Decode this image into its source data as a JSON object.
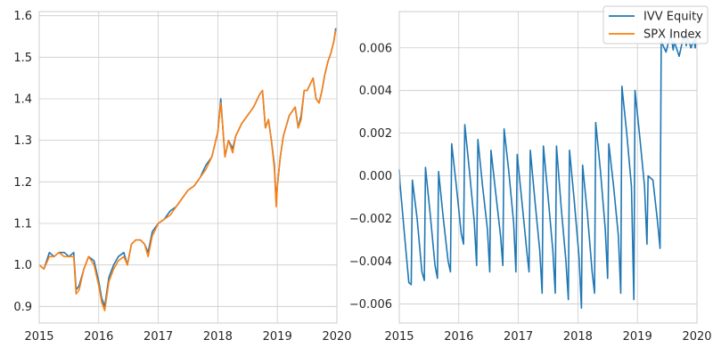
{
  "chart_data": [
    {
      "type": "line",
      "title": "",
      "xlabel": "",
      "ylabel": "",
      "xlim": [
        2015.0,
        2020.0
      ],
      "ylim": [
        0.86,
        1.61
      ],
      "xticks": [
        2015,
        2016,
        2017,
        2018,
        2019,
        2020
      ],
      "xtick_labels": [
        "2015",
        "2016",
        "2017",
        "2018",
        "2019",
        "2020"
      ],
      "yticks": [
        0.9,
        1.0,
        1.1,
        1.2,
        1.3,
        1.4,
        1.5,
        1.6
      ],
      "ytick_labels": [
        "0.9",
        "1.0",
        "1.1",
        "1.2",
        "1.3",
        "1.4",
        "1.5",
        "1.6"
      ],
      "grid": true,
      "series": [
        {
          "name": "IVV Equity",
          "color": "#1f77b4",
          "x": [
            2015.0,
            2015.08,
            2015.17,
            2015.25,
            2015.33,
            2015.42,
            2015.5,
            2015.58,
            2015.62,
            2015.67,
            2015.75,
            2015.83,
            2015.92,
            2016.0,
            2016.05,
            2016.1,
            2016.17,
            2016.25,
            2016.33,
            2016.42,
            2016.48,
            2016.55,
            2016.62,
            2016.7,
            2016.77,
            2016.83,
            2016.9,
            2017.0,
            2017.1,
            2017.2,
            2017.3,
            2017.4,
            2017.5,
            2017.6,
            2017.7,
            2017.8,
            2017.9,
            2018.0,
            2018.05,
            2018.08,
            2018.12,
            2018.18,
            2018.25,
            2018.3,
            2018.4,
            2018.5,
            2018.6,
            2018.7,
            2018.75,
            2018.8,
            2018.85,
            2018.9,
            2018.95,
            2018.98,
            2019.0,
            2019.05,
            2019.1,
            2019.2,
            2019.3,
            2019.35,
            2019.4,
            2019.45,
            2019.5,
            2019.6,
            2019.65,
            2019.7,
            2019.75,
            2019.8,
            2019.85,
            2019.9,
            2019.95,
            2019.98
          ],
          "values": [
            1.0,
            0.99,
            1.03,
            1.02,
            1.03,
            1.03,
            1.02,
            1.03,
            0.94,
            0.95,
            0.99,
            1.02,
            1.01,
            0.96,
            0.92,
            0.9,
            0.97,
            1.0,
            1.02,
            1.03,
            1.0,
            1.05,
            1.06,
            1.06,
            1.05,
            1.03,
            1.08,
            1.1,
            1.11,
            1.13,
            1.14,
            1.16,
            1.18,
            1.19,
            1.21,
            1.24,
            1.26,
            1.32,
            1.4,
            1.34,
            1.26,
            1.3,
            1.28,
            1.31,
            1.34,
            1.36,
            1.38,
            1.41,
            1.42,
            1.33,
            1.35,
            1.3,
            1.24,
            1.15,
            1.19,
            1.26,
            1.31,
            1.36,
            1.38,
            1.33,
            1.36,
            1.42,
            1.42,
            1.45,
            1.4,
            1.39,
            1.42,
            1.46,
            1.49,
            1.51,
            1.54,
            1.57
          ]
        },
        {
          "name": "SPX Index",
          "color": "#ff7f0e",
          "x": [
            2015.0,
            2015.08,
            2015.17,
            2015.25,
            2015.33,
            2015.42,
            2015.5,
            2015.58,
            2015.62,
            2015.67,
            2015.75,
            2015.83,
            2015.92,
            2016.0,
            2016.05,
            2016.1,
            2016.17,
            2016.25,
            2016.33,
            2016.42,
            2016.48,
            2016.55,
            2016.62,
            2016.7,
            2016.77,
            2016.83,
            2016.9,
            2017.0,
            2017.1,
            2017.2,
            2017.3,
            2017.4,
            2017.5,
            2017.6,
            2017.7,
            2017.8,
            2017.9,
            2018.0,
            2018.05,
            2018.08,
            2018.12,
            2018.18,
            2018.25,
            2018.3,
            2018.4,
            2018.5,
            2018.6,
            2018.7,
            2018.75,
            2018.8,
            2018.85,
            2018.9,
            2018.95,
            2018.98,
            2019.0,
            2019.05,
            2019.1,
            2019.2,
            2019.3,
            2019.35,
            2019.4,
            2019.45,
            2019.5,
            2019.6,
            2019.65,
            2019.7,
            2019.75,
            2019.8,
            2019.85,
            2019.9,
            2019.95,
            2019.98
          ],
          "values": [
            1.0,
            0.99,
            1.02,
            1.02,
            1.03,
            1.02,
            1.02,
            1.02,
            0.93,
            0.94,
            0.99,
            1.02,
            1.0,
            0.95,
            0.91,
            0.89,
            0.96,
            0.99,
            1.01,
            1.02,
            1.0,
            1.05,
            1.06,
            1.06,
            1.05,
            1.02,
            1.07,
            1.1,
            1.11,
            1.12,
            1.14,
            1.16,
            1.18,
            1.19,
            1.21,
            1.23,
            1.26,
            1.32,
            1.39,
            1.34,
            1.26,
            1.3,
            1.27,
            1.31,
            1.34,
            1.36,
            1.38,
            1.41,
            1.42,
            1.33,
            1.35,
            1.3,
            1.23,
            1.14,
            1.19,
            1.26,
            1.31,
            1.36,
            1.38,
            1.33,
            1.35,
            1.42,
            1.42,
            1.45,
            1.4,
            1.39,
            1.42,
            1.46,
            1.49,
            1.51,
            1.54,
            1.565
          ]
        }
      ]
    },
    {
      "type": "line",
      "title": "",
      "xlabel": "",
      "ylabel": "",
      "xlim": [
        2015.0,
        2020.0
      ],
      "ylim": [
        -0.0069,
        0.0077
      ],
      "xticks": [
        2015,
        2016,
        2017,
        2018,
        2019,
        2020
      ],
      "xtick_labels": [
        "2015",
        "2016",
        "2017",
        "2018",
        "2019",
        "2020"
      ],
      "yticks": [
        -0.006,
        -0.004,
        -0.002,
        0.0,
        0.002,
        0.004,
        0.006
      ],
      "ytick_labels": [
        "−0.006",
        "−0.004",
        "−0.002",
        "0.000",
        "0.002",
        "0.004",
        "0.006"
      ],
      "grid": true,
      "series": [
        {
          "name": "",
          "color": "#1f77b4",
          "x": [
            2015.0,
            2015.01,
            2015.08,
            2015.16,
            2015.2,
            2015.22,
            2015.3,
            2015.38,
            2015.42,
            2015.44,
            2015.52,
            2015.6,
            2015.64,
            2015.66,
            2015.74,
            2015.82,
            2015.86,
            2015.88,
            2015.96,
            2016.04,
            2016.08,
            2016.1,
            2016.18,
            2016.26,
            2016.3,
            2016.32,
            2016.4,
            2016.48,
            2016.52,
            2016.54,
            2016.62,
            2016.7,
            2016.74,
            2016.76,
            2016.84,
            2016.92,
            2016.96,
            2016.98,
            2017.06,
            2017.14,
            2017.18,
            2017.2,
            2017.28,
            2017.36,
            2017.4,
            2017.42,
            2017.5,
            2017.58,
            2017.62,
            2017.64,
            2017.72,
            2017.8,
            2017.84,
            2017.86,
            2017.94,
            2018.02,
            2018.06,
            2018.08,
            2018.16,
            2018.24,
            2018.28,
            2018.3,
            2018.38,
            2018.46,
            2018.5,
            2018.52,
            2018.6,
            2018.68,
            2018.72,
            2018.74,
            2018.82,
            2018.9,
            2018.94,
            2018.96,
            2019.04,
            2019.12,
            2019.16,
            2019.18,
            2019.26,
            2019.34,
            2019.38,
            2019.4,
            2019.48,
            2019.56,
            2019.6,
            2019.62,
            2019.7,
            2019.78,
            2019.82,
            2019.84,
            2019.9,
            2019.95,
            2019.97,
            2019.99
          ],
          "values": [
            0.0003,
            -0.0003,
            -0.0025,
            -0.005,
            -0.0051,
            -0.0002,
            -0.002,
            -0.0045,
            -0.0049,
            0.0004,
            -0.0018,
            -0.0042,
            -0.0048,
            0.0002,
            -0.002,
            -0.004,
            -0.0045,
            0.0015,
            -0.0005,
            -0.0027,
            -0.0032,
            0.0024,
            0.0002,
            -0.0022,
            -0.0042,
            0.0017,
            -0.0005,
            -0.0025,
            -0.0045,
            0.0012,
            -0.0008,
            -0.0028,
            -0.0042,
            0.0022,
            0.0002,
            -0.0022,
            -0.0045,
            0.001,
            -0.0012,
            -0.0035,
            -0.0045,
            0.0012,
            -0.0012,
            -0.0035,
            -0.0055,
            0.0014,
            -0.001,
            -0.0035,
            -0.0055,
            0.0014,
            -0.0015,
            -0.004,
            -0.0058,
            0.0012,
            -0.0012,
            -0.0038,
            -0.0062,
            0.0005,
            -0.0018,
            -0.0045,
            -0.0055,
            0.0025,
            0.0002,
            -0.0025,
            -0.0048,
            0.0015,
            -0.0005,
            -0.0028,
            -0.0055,
            0.0042,
            0.002,
            -0.0005,
            -0.0058,
            0.004,
            0.0018,
            -0.0005,
            -0.0032,
            0.0,
            -0.0002,
            -0.0022,
            -0.0034,
            0.0063,
            0.0058,
            0.0067,
            0.0059,
            0.0063,
            0.0056,
            0.0066,
            0.0061,
            0.0065,
            0.006,
            0.0064,
            0.006,
            0.0066
          ]
        }
      ],
      "legend": {
        "placement": "top-right",
        "entries": [
          {
            "label": "IVV Equity",
            "color": "#1f77b4"
          },
          {
            "label": "SPX Index",
            "color": "#ff7f0e"
          }
        ]
      }
    }
  ]
}
